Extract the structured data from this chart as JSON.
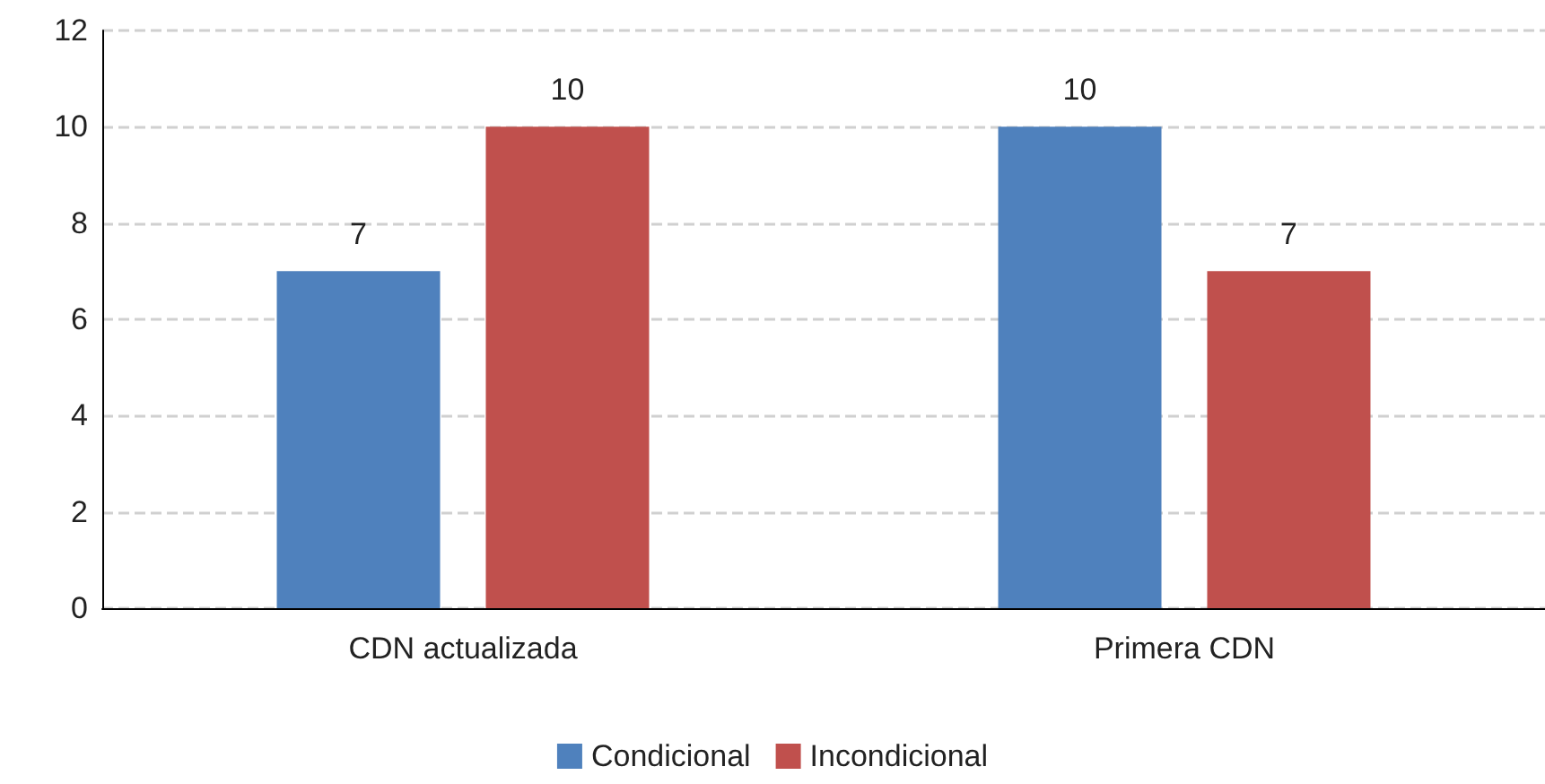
{
  "chart_data": {
    "type": "bar",
    "categories": [
      "CDN actualizada",
      "Primera CDN"
    ],
    "series": [
      {
        "name": "Condicional",
        "color": "#4f81bd",
        "values": [
          7,
          10
        ]
      },
      {
        "name": "Incondicional",
        "color": "#c0504d",
        "values": [
          10,
          7
        ]
      }
    ],
    "ylim": [
      0,
      12
    ],
    "yticks": [
      0,
      2,
      4,
      6,
      8,
      10,
      12
    ],
    "grid": "y",
    "legend": "bottom",
    "data_labels": true
  }
}
